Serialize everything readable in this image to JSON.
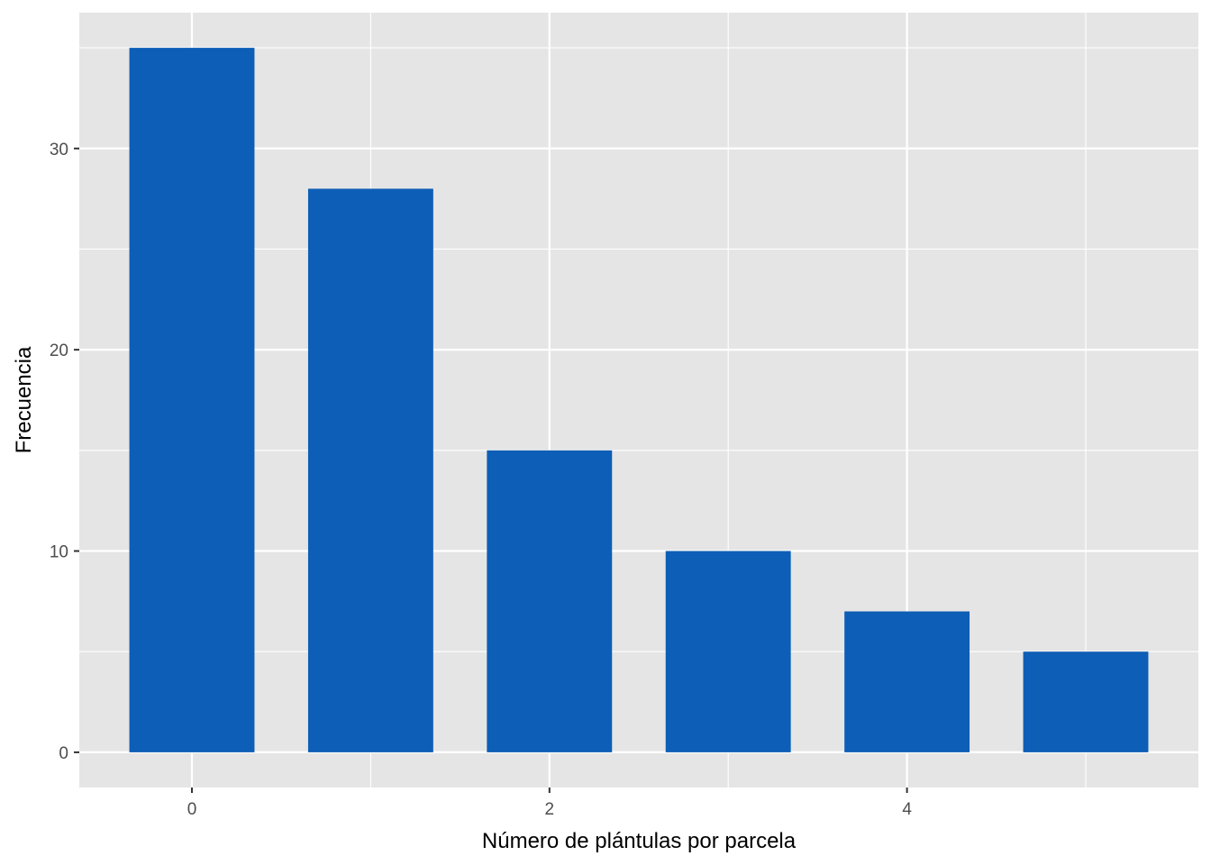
{
  "chart_data": {
    "type": "bar",
    "x": [
      0,
      1,
      2,
      3,
      4,
      5
    ],
    "values": [
      35,
      28,
      15,
      10,
      7,
      5
    ],
    "xlabel": "Número de plántulas por parcela",
    "ylabel": "Frecuencia",
    "xlim": [
      -0.63,
      5.63
    ],
    "ylim": [
      -1.75,
      36.75
    ],
    "x_ticks": [
      0,
      2,
      4
    ],
    "y_ticks": [
      0,
      10,
      20,
      30
    ],
    "grid": true,
    "bar_color": "#0D5EB6",
    "panel_background": "#E5E5E5",
    "grid_color": "#FFFFFF"
  }
}
